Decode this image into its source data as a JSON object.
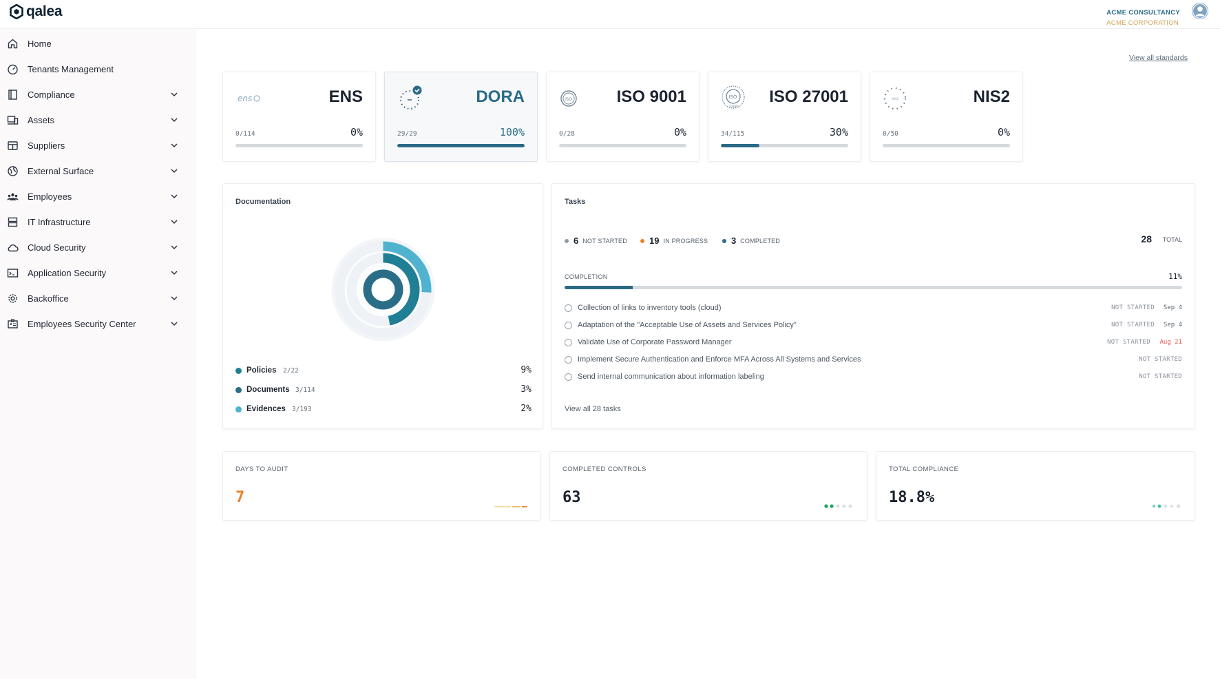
{
  "app": {
    "brand": "qalea",
    "org_name": "ACME CONSULTANCY",
    "org_sub": "ACME CORPORATION"
  },
  "sidebar": {
    "items": [
      {
        "label": "Home",
        "icon": "home-icon",
        "expandable": false
      },
      {
        "label": "Tenants Management",
        "icon": "gauge-icon",
        "expandable": false
      },
      {
        "label": "Compliance",
        "icon": "book-icon",
        "expandable": true
      },
      {
        "label": "Assets",
        "icon": "devices-icon",
        "expandable": true
      },
      {
        "label": "Suppliers",
        "icon": "store-icon",
        "expandable": true
      },
      {
        "label": "External Surface",
        "icon": "globe-icon",
        "expandable": true
      },
      {
        "label": "Employees",
        "icon": "people-icon",
        "expandable": true
      },
      {
        "label": "IT Infrastructure",
        "icon": "server-icon",
        "expandable": true
      },
      {
        "label": "Cloud Security",
        "icon": "cloud-icon",
        "expandable": true
      },
      {
        "label": "Application Security",
        "icon": "terminal-icon",
        "expandable": true
      },
      {
        "label": "Backoffice",
        "icon": "gear-icon",
        "expandable": true
      },
      {
        "label": "Employees Security Center",
        "icon": "badge-icon",
        "expandable": true
      }
    ]
  },
  "standards": {
    "view_all": "View all standards",
    "items": [
      {
        "name": "ENS",
        "count": "0/114",
        "pct": "0%",
        "progress": 0,
        "active": false,
        "logo": "ens-logo"
      },
      {
        "name": "DORA",
        "count": "29/29",
        "pct": "100%",
        "progress": 1.0,
        "active": true,
        "logo": "dora-logo"
      },
      {
        "name": "ISO 9001",
        "count": "0/28",
        "pct": "0%",
        "progress": 0,
        "active": false,
        "logo": "iso-logo"
      },
      {
        "name": "ISO 27001",
        "count": "34/115",
        "pct": "30%",
        "progress": 0.3,
        "active": false,
        "logo": "iso-27001-logo"
      },
      {
        "name": "NIS2",
        "count": "0/50",
        "pct": "0%",
        "progress": 0,
        "active": false,
        "logo": "nis2-logo"
      }
    ]
  },
  "documentation": {
    "title": "Documentation",
    "items": [
      {
        "label": "Policies",
        "count": "2/22",
        "pct": "9%",
        "color": "#1f7f95"
      },
      {
        "label": "Documents",
        "count": "3/114",
        "pct": "3%",
        "color": "#2a6d86"
      },
      {
        "label": "Evidences",
        "count": "3/193",
        "pct": "2%",
        "color": "#4fb3cf"
      }
    ]
  },
  "tasks": {
    "title": "Tasks",
    "not_started": {
      "num": "6",
      "label": "NOT STARTED",
      "color": "#8d99a6"
    },
    "in_progress": {
      "num": "19",
      "label": "IN PROGRESS",
      "color": "#e9822d"
    },
    "completed": {
      "num": "3",
      "label": "COMPLETED",
      "color": "#2a6d86"
    },
    "total_num": "28",
    "total_label": "TOTAL",
    "completion_label": "COMPLETION",
    "completion_pct": "11%",
    "completion_progress": 0.11,
    "list": [
      {
        "label": "Collection of links to inventory tools (cloud)",
        "status": "NOT STARTED",
        "date": "Sep 4",
        "overdue": false
      },
      {
        "label": "Adaptation of the \"Acceptable Use of Assets and Services Policy\"",
        "status": "NOT STARTED",
        "date": "Sep 4",
        "overdue": false
      },
      {
        "label": "Validate Use of Corporate Password Manager",
        "status": "NOT STARTED",
        "date": "Aug 21",
        "overdue": true
      },
      {
        "label": "Implement Secure Authentication and Enforce MFA Across All Systems and Services",
        "status": "NOT STARTED",
        "date": "",
        "overdue": false
      },
      {
        "label": "Send internal communication about information labeling",
        "status": "NOT STARTED",
        "date": "",
        "overdue": false
      }
    ],
    "view_all": "View all 28 tasks"
  },
  "kpis": {
    "days_to_audit": {
      "label": "DAYS TO AUDIT",
      "value": "7"
    },
    "completed_controls": {
      "label": "COMPLETED CONTROLS",
      "value": "63"
    },
    "total_compliance": {
      "label": "TOTAL COMPLIANCE",
      "value": "18.8%"
    }
  },
  "colors": {
    "accent": "#2a6a86",
    "warning": "#e9822d",
    "overdue": "#e0574f",
    "org_sub": "#d3a356"
  }
}
